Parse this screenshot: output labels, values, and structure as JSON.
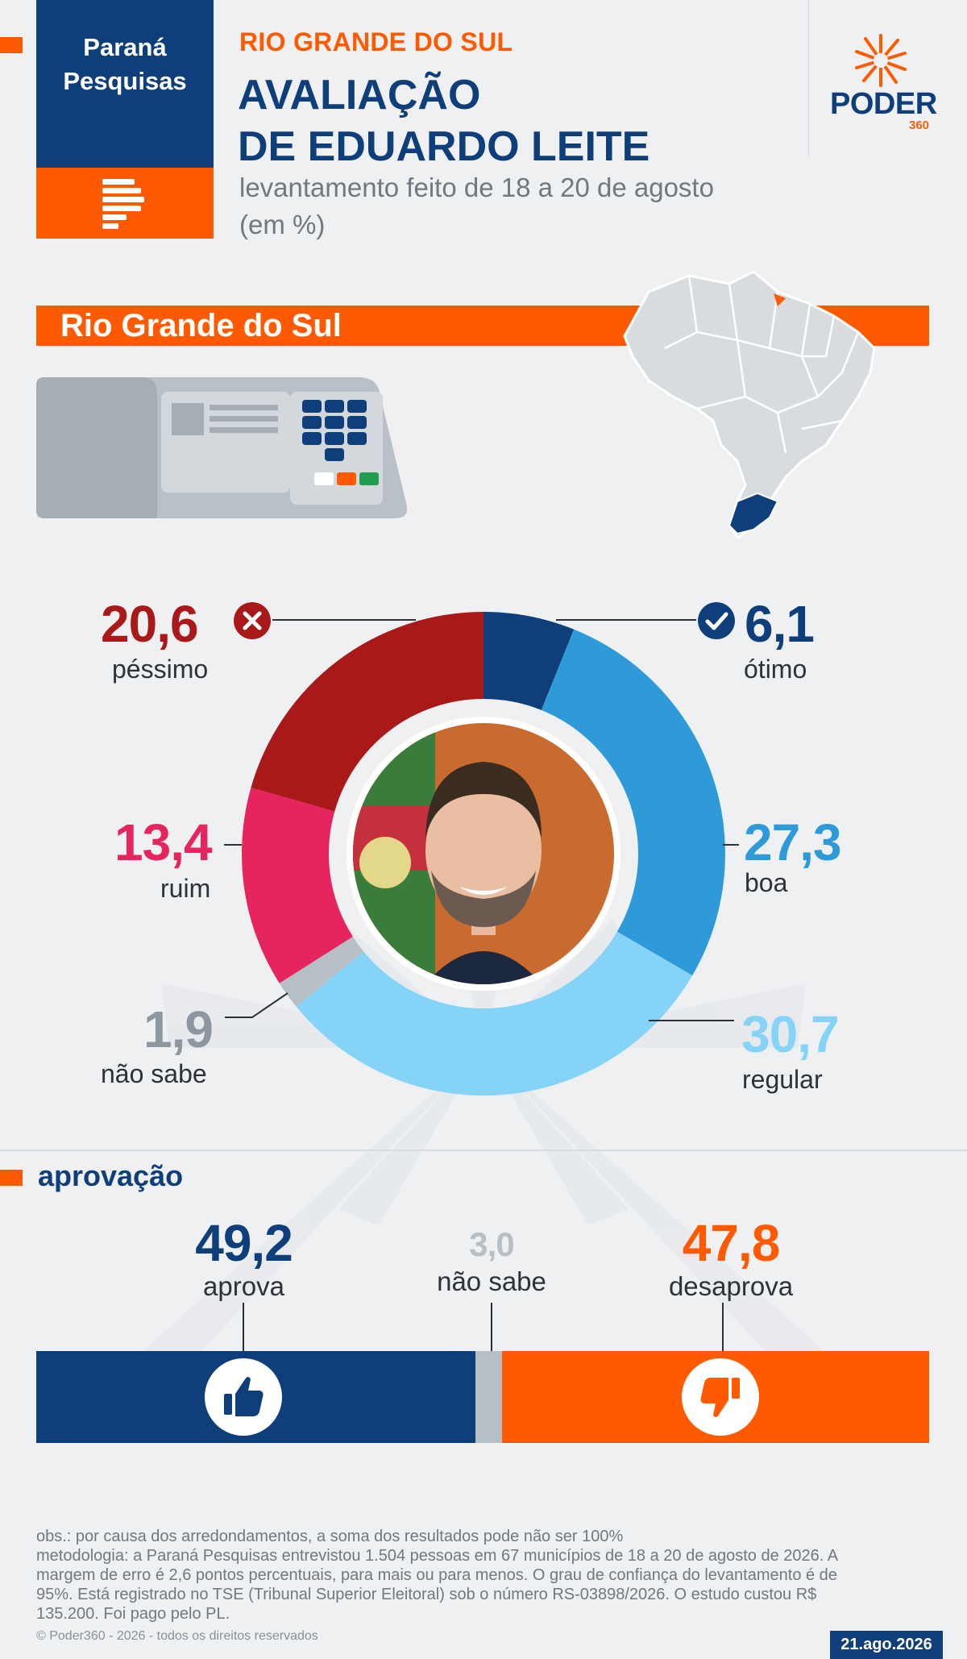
{
  "header": {
    "source_line1": "Paraná",
    "source_line2": "Pesquisas",
    "kicker": "RIO GRANDE DO SUL",
    "title_line1": "AVALIAÇÃO",
    "title_line2": "DE EDUARDO LEITE",
    "subtitle_line1": "levantamento feito de 18 a 20 de agosto",
    "subtitle_line2": "(em %)",
    "brand": "PODER",
    "brand_suffix": "360"
  },
  "region_banner": "Rio Grande do Sul",
  "chart_data": [
    {
      "type": "pie",
      "categories": [
        "ótimo",
        "boa",
        "regular",
        "não sabe",
        "ruim",
        "péssimo"
      ],
      "values": [
        6.1,
        27.3,
        30.7,
        1.9,
        13.4,
        20.6
      ],
      "value_labels": [
        "6,1",
        "27,3",
        "30,7",
        "1,9",
        "13,4",
        "20,6"
      ],
      "colors": [
        "#0e3f7a",
        "#2f9ad8",
        "#86d3f8",
        "#b7bfc6",
        "#e6245e",
        "#a9191a"
      ],
      "title": "",
      "legend": "none"
    },
    {
      "type": "bar",
      "title": "aprovação",
      "categories": [
        "aprova",
        "não sabe",
        "desaprova"
      ],
      "values": [
        49.2,
        3.0,
        47.8
      ],
      "value_labels": [
        "49,2",
        "3,0",
        "47,8"
      ],
      "colors": [
        "#0e3f7a",
        "#b7bfc6",
        "#ff5a00"
      ],
      "orientation": "horizontal-stacked",
      "legend": "none"
    }
  ],
  "approval_title": "aprovação",
  "notes": {
    "line1": "obs.: por causa dos arredondamentos, a soma dos resultados pode não ser 100%",
    "line2": "metodologia: a Paraná Pesquisas entrevistou 1.504 pessoas em 67 municípios de 18 a 20 de agosto de 2026. A",
    "line3": "margem de erro é 2,6 pontos percentuais, para mais ou para menos. O grau de confiança do levantamento é de",
    "line4": "95%. Está registrado no TSE (Tribunal Superior Eleitoral) sob o número RS-03898/2026. O estudo custou R$",
    "line5": "135.200. Foi pago pelo PL."
  },
  "copyright": "© Poder360 - 2026 - todos os direitos reservados",
  "date": "21.ago.2026",
  "icons": {
    "check": "check-circle-icon",
    "x": "x-circle-icon",
    "thumbs_up": "thumbs-up-icon",
    "thumbs_down": "thumbs-down-icon"
  }
}
